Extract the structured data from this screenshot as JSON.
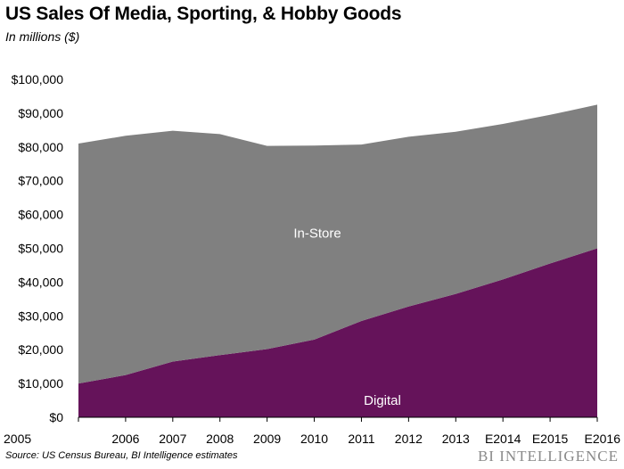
{
  "header": {
    "title": "US Sales Of Media, Sporting, & Hobby Goods",
    "subtitle": "In millions ($)"
  },
  "footer": {
    "source": "Source: US Census Bureau, BI Intelligence estimates",
    "brand": "BI INTELLIGENCE"
  },
  "chart_data": {
    "type": "area",
    "stacked": true,
    "title": "US Sales Of Media, Sporting, & Hobby Goods",
    "subtitle": "In millions ($)",
    "categories": [
      "2005",
      "2006",
      "2007",
      "2008",
      "2009",
      "2010",
      "2011",
      "2012",
      "2013",
      "E2014",
      "E2015",
      "E2016"
    ],
    "series": [
      {
        "name": "Digital",
        "color": "#65135a",
        "values": [
          10000,
          12500,
          16500,
          18400,
          20200,
          23000,
          28500,
          32800,
          36500,
          40800,
          45500,
          50000
        ]
      },
      {
        "name": "In-Store",
        "color": "#808080",
        "values": [
          71000,
          70800,
          68300,
          65400,
          60100,
          57400,
          52200,
          50200,
          48000,
          46000,
          44000,
          42500
        ]
      }
    ],
    "yticks": [
      "$0",
      "$10,000",
      "$20,000",
      "$30,000",
      "$40,000",
      "$50,000",
      "$60,000",
      "$70,000",
      "$80,000",
      "$90,000",
      "$100,000"
    ],
    "ylim": [
      0,
      100000
    ],
    "grid": false,
    "legend": "inline labels"
  }
}
